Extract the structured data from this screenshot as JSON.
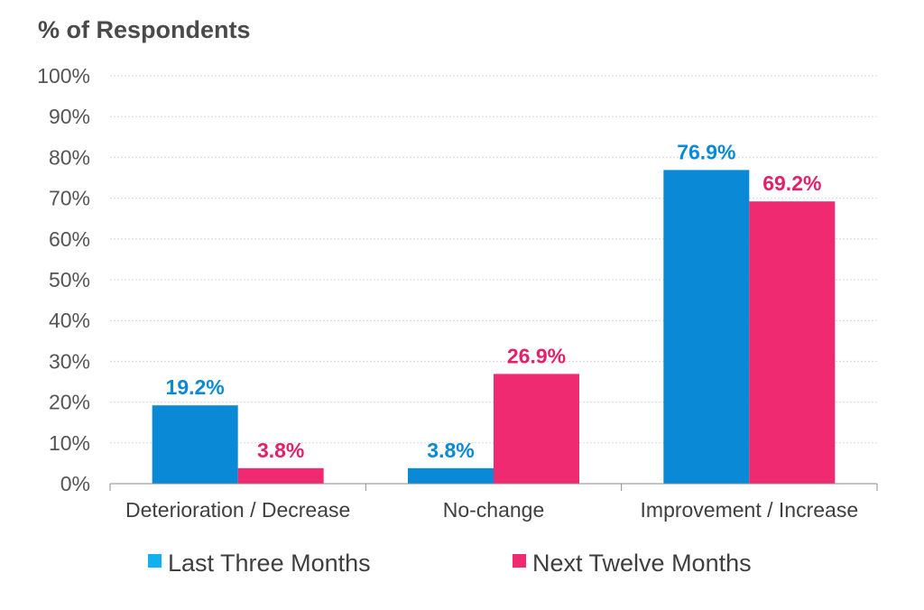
{
  "chart_data": {
    "type": "bar",
    "title": "",
    "ylabel": "% of Respondents",
    "xlabel": "",
    "ylim": [
      0,
      100
    ],
    "yticks": [
      "0%",
      "10%",
      "20%",
      "30%",
      "40%",
      "50%",
      "60%",
      "70%",
      "80%",
      "90%",
      "100%"
    ],
    "grid": true,
    "legend_position": "bottom",
    "categories": [
      "Deterioration / Decrease",
      "No-change",
      "Improvement / Increase"
    ],
    "series": [
      {
        "name": "Last Three Months",
        "color": "#0a89d6",
        "label_color": "#0a89d6",
        "legend_color": "#11b0ee",
        "values": [
          19.2,
          3.8,
          76.9
        ],
        "labels": [
          "19.2%",
          "3.8%",
          "76.9%"
        ]
      },
      {
        "name": "Next Twelve Months",
        "color": "#ef2a70",
        "label_color": "#e3206a",
        "legend_color": "#ef2a70",
        "values": [
          3.8,
          26.9,
          69.2
        ],
        "labels": [
          "3.8%",
          "26.9%",
          "69.2%"
        ]
      }
    ]
  }
}
